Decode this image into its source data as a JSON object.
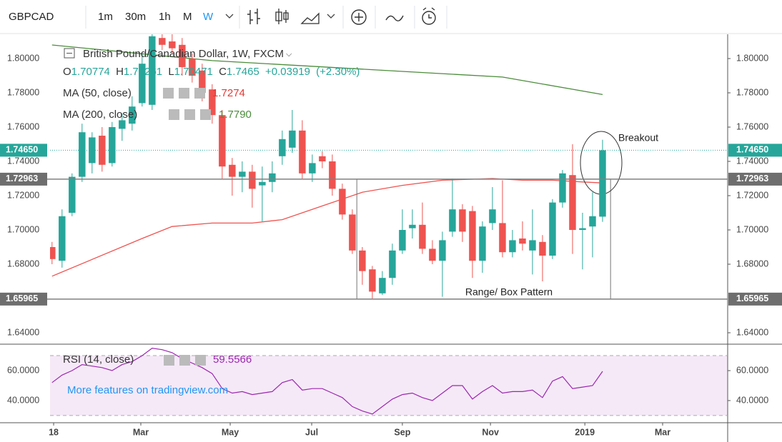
{
  "toolbar": {
    "symbol": "GBPCAD",
    "intervals": [
      "1m",
      "30m",
      "1h",
      "M",
      "W"
    ]
  },
  "chart_data": {
    "type": "candlestick",
    "title": "British Pound/Canadian Dollar, 1W, FXCM",
    "x": [
      0,
      1,
      2,
      3,
      4,
      5,
      6,
      7,
      8,
      9,
      10,
      11,
      12,
      13,
      14,
      15,
      16,
      17,
      18,
      19,
      20,
      21,
      22,
      23,
      24,
      25,
      26,
      27,
      28,
      29,
      30,
      31,
      32,
      33,
      34,
      35,
      36,
      37,
      38,
      39,
      40,
      41,
      42,
      43,
      44,
      45,
      46,
      47,
      48,
      49,
      50,
      51,
      52,
      53,
      54,
      55
    ],
    "open": [
      1.69,
      1.682,
      1.71,
      1.731,
      1.739,
      1.755,
      1.739,
      1.759,
      1.762,
      1.774,
      1.773,
      1.812,
      1.81,
      1.808,
      1.8,
      1.793,
      1.782,
      1.767,
      1.738,
      1.731,
      1.734,
      1.726,
      1.728,
      1.743,
      1.748,
      1.758,
      1.733,
      1.743,
      1.74,
      1.724,
      1.709,
      1.688,
      1.677,
      1.663,
      1.672,
      1.688,
      1.701,
      1.703,
      1.689,
      1.682,
      1.699,
      1.712,
      1.711,
      1.682,
      1.704,
      1.704,
      1.687,
      1.695,
      1.688,
      1.693,
      1.685,
      1.716,
      1.732,
      1.7,
      1.702,
      1.70774
    ],
    "high": [
      1.693,
      1.712,
      1.733,
      1.762,
      1.757,
      1.76,
      1.763,
      1.768,
      1.778,
      1.803,
      1.815,
      1.815,
      1.815,
      1.812,
      1.803,
      1.797,
      1.785,
      1.77,
      1.742,
      1.74,
      1.738,
      1.737,
      1.74,
      1.758,
      1.77,
      1.764,
      1.744,
      1.746,
      1.744,
      1.727,
      1.712,
      1.69,
      1.679,
      1.676,
      1.692,
      1.712,
      1.712,
      1.716,
      1.694,
      1.699,
      1.73,
      1.715,
      1.714,
      1.705,
      1.725,
      1.729,
      1.7,
      1.705,
      1.712,
      1.697,
      1.718,
      1.735,
      1.75,
      1.71,
      1.722,
      1.75261
    ],
    "low": [
      1.68,
      1.678,
      1.708,
      1.728,
      1.733,
      1.734,
      1.737,
      1.752,
      1.758,
      1.772,
      1.77,
      1.805,
      1.803,
      1.79,
      1.786,
      1.775,
      1.762,
      1.73,
      1.72,
      1.722,
      1.713,
      1.705,
      1.722,
      1.738,
      1.745,
      1.73,
      1.728,
      1.736,
      1.72,
      1.706,
      1.686,
      1.668,
      1.66,
      1.662,
      1.668,
      1.686,
      1.695,
      1.686,
      1.68,
      1.661,
      1.696,
      1.693,
      1.672,
      1.675,
      1.7,
      1.684,
      1.684,
      1.688,
      1.674,
      1.67,
      1.683,
      1.713,
      1.686,
      1.677,
      1.684,
      1.70471
    ],
    "close": [
      1.683,
      1.708,
      1.731,
      1.757,
      1.754,
      1.738,
      1.76,
      1.764,
      1.772,
      1.797,
      1.813,
      1.808,
      1.806,
      1.795,
      1.79,
      1.78,
      1.767,
      1.737,
      1.731,
      1.734,
      1.724,
      1.728,
      1.733,
      1.753,
      1.758,
      1.733,
      1.739,
      1.74,
      1.724,
      1.709,
      1.688,
      1.676,
      1.664,
      1.672,
      1.688,
      1.7,
      1.703,
      1.689,
      1.682,
      1.694,
      1.712,
      1.699,
      1.682,
      1.702,
      1.712,
      1.687,
      1.694,
      1.692,
      1.694,
      1.685,
      1.716,
      1.733,
      1.7,
      1.701,
      1.708,
      1.7465
    ],
    "up_color": "#26a69a",
    "down_color": "#ef5350",
    "xlim": [
      -0.2,
      67.5
    ],
    "xticks": [
      {
        "value": 0.16,
        "label": "18"
      },
      {
        "value": 8.87,
        "label": "Mar"
      },
      {
        "value": 17.8,
        "label": "May"
      },
      {
        "value": 25.94,
        "label": "Jul"
      },
      {
        "value": 35.0,
        "label": "Sep"
      },
      {
        "value": 43.8,
        "label": "Nov"
      },
      {
        "value": 53.23,
        "label": "2019"
      },
      {
        "value": 61.0,
        "label": "Mar"
      }
    ],
    "ylim": [
      1.63417,
      1.81417
    ],
    "yticks": [
      {
        "value": 1.64,
        "label": "1.64000"
      },
      {
        "value": 1.68,
        "label": "1.68000"
      },
      {
        "value": 1.7,
        "label": "1.70000"
      },
      {
        "value": 1.72,
        "label": "1.72000"
      },
      {
        "value": 1.74,
        "label": "1.74000"
      },
      {
        "value": 1.76,
        "label": "1.76000"
      },
      {
        "value": 1.78,
        "label": "1.78000"
      },
      {
        "value": 1.8,
        "label": "1.80000"
      }
    ],
    "ohlc_legend": {
      "labels": [
        "O",
        "H",
        "L",
        "C"
      ],
      "change": "+0.03919",
      "change_pct": "(+2.30%)"
    },
    "price_lines": [
      {
        "value": 1.72963,
        "label": "1.72963"
      },
      {
        "value": 1.65965,
        "label": "1.65965"
      }
    ],
    "last_price": {
      "value": 1.7465,
      "label": "1.74650"
    },
    "overlays": [
      {
        "name": "MA (50, close)",
        "color": "#ef5350",
        "value_label": "1.7274",
        "x": [
          0,
          9,
          12,
          16,
          20,
          23,
          27,
          31,
          35,
          39,
          44,
          47,
          50,
          53,
          55
        ],
        "values": [
          1.673,
          1.695,
          1.702,
          1.704,
          1.704,
          1.706,
          1.714,
          1.722,
          1.726,
          1.729,
          1.73,
          1.729,
          1.729,
          1.728,
          1.7274
        ]
      },
      {
        "name": "MA (200, close)",
        "color": "#4c8c3c",
        "value_label": "1.7790",
        "x": [
          0,
          16,
          35,
          45,
          52,
          55
        ],
        "values": [
          1.8079,
          1.7988,
          1.7925,
          1.7892,
          1.7821,
          1.779
        ]
      }
    ],
    "annotations": {
      "breakout": "Breakout",
      "box": "Range/ Box Pattern"
    },
    "rsi": {
      "name": "RSI (14, close)",
      "value_label": "59.5566",
      "color": "#9c27b0",
      "values": [
        52,
        57,
        60,
        64,
        63,
        62,
        60,
        64,
        66,
        70,
        75,
        74,
        72,
        68,
        65,
        62,
        58,
        48,
        45,
        46,
        44,
        45,
        46,
        52,
        54,
        47,
        48,
        48,
        45,
        42,
        36,
        33,
        31,
        36,
        41,
        44,
        45,
        42,
        40,
        45,
        50,
        50,
        41,
        46,
        50,
        45,
        46,
        46,
        47,
        42,
        53,
        56,
        48,
        49,
        50,
        59.5566
      ],
      "ylim": [
        25.2,
        76.7
      ],
      "yticks": [
        {
          "value": 40,
          "label": "40.0000"
        },
        {
          "value": 60,
          "label": "60.0000"
        }
      ],
      "bands": [
        30,
        70
      ]
    }
  },
  "watermark": "More features on tradingview.com"
}
